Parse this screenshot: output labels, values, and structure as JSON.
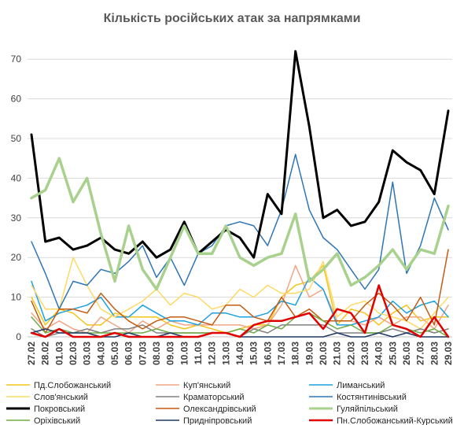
{
  "chart_data": {
    "type": "line",
    "title": "Кількість російських атак за напрямками",
    "ylim": [
      0,
      75
    ],
    "yticks": [
      0,
      10,
      20,
      30,
      40,
      50,
      60,
      70
    ],
    "grid": "horizontal",
    "legend_position": "bottom",
    "categories": [
      "27.02",
      "28.02",
      "01.03",
      "02.03",
      "03.03",
      "04.03",
      "05.03",
      "06.03",
      "07.03",
      "08.03",
      "09.03",
      "10.03",
      "11.03",
      "12.03",
      "13.03",
      "14.03",
      "15.03",
      "16.03",
      "17.03",
      "18.03",
      "19.03",
      "20.03",
      "21.03",
      "22.03",
      "23.03",
      "24.03",
      "25.03",
      "26.03",
      "27.03",
      "28.03",
      "29.03"
    ],
    "series": [
      {
        "name": "Пд.Слобожанський",
        "color": "#f5c518",
        "width": 1.5,
        "values": [
          10,
          3,
          7,
          6,
          3,
          3,
          6,
          5,
          5,
          5,
          3,
          2,
          3,
          2,
          1,
          2,
          3,
          3,
          10,
          13,
          14,
          18,
          3,
          7,
          6,
          3,
          6,
          8,
          4,
          5,
          5
        ]
      },
      {
        "name": "Куп'янський",
        "color": "#f4a582",
        "width": 1.5,
        "values": [
          6,
          2,
          4,
          2,
          1,
          5,
          3,
          1,
          4,
          2,
          4,
          3,
          3,
          3,
          3,
          3,
          2,
          3,
          8,
          18,
          10,
          12,
          4,
          4,
          3,
          5,
          3,
          5,
          5,
          2,
          8
        ]
      },
      {
        "name": "Лиманський",
        "color": "#1ba1e2",
        "width": 1.5,
        "values": [
          14,
          4,
          6,
          7,
          8,
          10,
          5,
          5,
          8,
          6,
          4,
          4,
          3,
          6,
          6,
          5,
          5,
          6,
          9,
          8,
          15,
          12,
          3,
          3,
          4,
          5,
          9,
          6,
          8,
          9,
          5
        ]
      },
      {
        "name": "Слов'янський",
        "color": "#ffd966",
        "width": 1.5,
        "values": [
          13,
          7,
          7,
          20,
          13,
          7,
          5,
          7,
          9,
          12,
          8,
          11,
          10,
          7,
          8,
          12,
          10,
          13,
          11,
          11,
          12,
          19,
          5,
          8,
          9,
          6,
          5,
          4,
          2,
          6,
          10
        ]
      },
      {
        "name": "Краматорський",
        "color": "#808080",
        "width": 1.5,
        "values": [
          2,
          0,
          1,
          1,
          2,
          1,
          2,
          2,
          3,
          1,
          1,
          1,
          1,
          1,
          1,
          0,
          2,
          1,
          3,
          3,
          3,
          3,
          1,
          1,
          1,
          1,
          2,
          1,
          2,
          1,
          2
        ]
      },
      {
        "name": "Костянтинівський",
        "color": "#2e75b6",
        "width": 1.5,
        "values": [
          24,
          16,
          7,
          14,
          13,
          17,
          16,
          19,
          23,
          15,
          20,
          13,
          21,
          23,
          28,
          29,
          28,
          23,
          32,
          46,
          32,
          25,
          22,
          17,
          12,
          17,
          39,
          16,
          23,
          35,
          27
        ]
      },
      {
        "name": "Покровський",
        "color": "#000000",
        "width": 3,
        "values": [
          51,
          24,
          25,
          22,
          23,
          25,
          22,
          21,
          24,
          20,
          22,
          29,
          21,
          24,
          27,
          25,
          20,
          36,
          31,
          72,
          53,
          30,
          32,
          28,
          29,
          34,
          47,
          44,
          42,
          36,
          57
        ]
      },
      {
        "name": "Олександрівський",
        "color": "#c55a11",
        "width": 1.5,
        "values": [
          9,
          1,
          7,
          7,
          6,
          11,
          7,
          4,
          2,
          4,
          5,
          5,
          4,
          3,
          8,
          8,
          5,
          4,
          10,
          5,
          7,
          4,
          4,
          4,
          8,
          11,
          8,
          4,
          10,
          3,
          22
        ]
      },
      {
        "name": "Гуляйпільський",
        "color": "#a9d18e",
        "width": 3.5,
        "values": [
          35,
          37,
          45,
          34,
          40,
          26,
          14,
          28,
          17,
          12,
          20,
          28,
          21,
          21,
          28,
          20,
          18,
          20,
          21,
          31,
          14,
          17,
          21,
          13,
          15,
          18,
          22,
          17,
          22,
          21,
          33
        ]
      },
      {
        "name": "Оріхівський",
        "color": "#70ad47",
        "width": 1.5,
        "values": [
          5,
          1,
          2,
          1,
          1,
          1,
          1,
          1,
          1,
          2,
          1,
          1,
          1,
          1,
          1,
          2,
          1,
          3,
          2,
          5,
          6,
          4,
          2,
          3,
          1,
          1,
          3,
          2,
          1,
          2,
          0
        ]
      },
      {
        "name": "Придніпровський",
        "color": "#1f3864",
        "width": 1.5,
        "values": [
          1,
          2,
          1,
          1,
          1,
          0,
          0,
          1,
          0,
          0,
          1,
          0,
          0,
          1,
          1,
          0,
          0,
          0,
          0,
          0,
          0,
          0,
          1,
          0,
          0,
          1,
          0,
          1,
          0,
          0,
          0
        ]
      },
      {
        "name": "Пн.Слобожанський-Курський",
        "color": "#e00000",
        "width": 2.5,
        "values": [
          1,
          0,
          2,
          0,
          0,
          0,
          1,
          0,
          0,
          0,
          0,
          0,
          0,
          1,
          1,
          0,
          3,
          4,
          4,
          5,
          6,
          2,
          7,
          6,
          1,
          13,
          3,
          2,
          0,
          5,
          0
        ]
      }
    ]
  }
}
